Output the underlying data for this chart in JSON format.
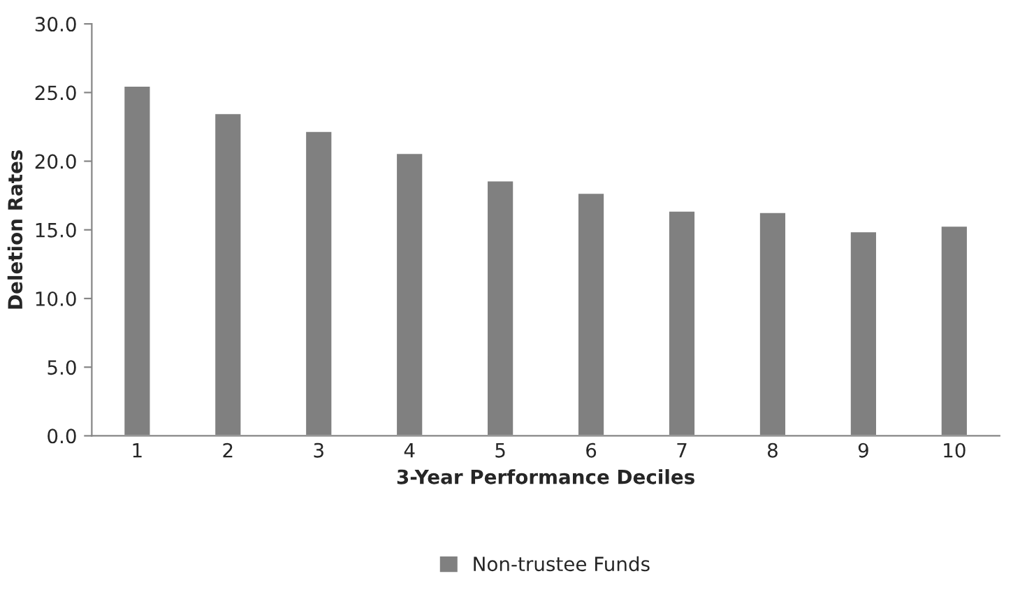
{
  "chart_data": {
    "type": "bar",
    "xlabel": "3-Year Performance Deciles",
    "ylabel": "Deletion Rates",
    "categories": [
      "1",
      "2",
      "3",
      "4",
      "5",
      "6",
      "7",
      "8",
      "9",
      "10"
    ],
    "series": [
      {
        "name": "Non-trustee Funds",
        "color": "#808080",
        "values": [
          25.5,
          23.5,
          22.2,
          20.6,
          18.6,
          17.7,
          16.4,
          16.3,
          14.9,
          15.3
        ]
      }
    ],
    "ylim": [
      0,
      30
    ],
    "yticks": [
      {
        "value": 0,
        "label": "0.0"
      },
      {
        "value": 5,
        "label": "5.0"
      },
      {
        "value": 10,
        "label": "10.0"
      },
      {
        "value": 15,
        "label": "15.0"
      },
      {
        "value": 20,
        "label": "20.0"
      },
      {
        "value": 25,
        "label": "25.0"
      },
      {
        "value": 30,
        "label": "30.0"
      }
    ],
    "legend": "bottom",
    "grid": false
  }
}
